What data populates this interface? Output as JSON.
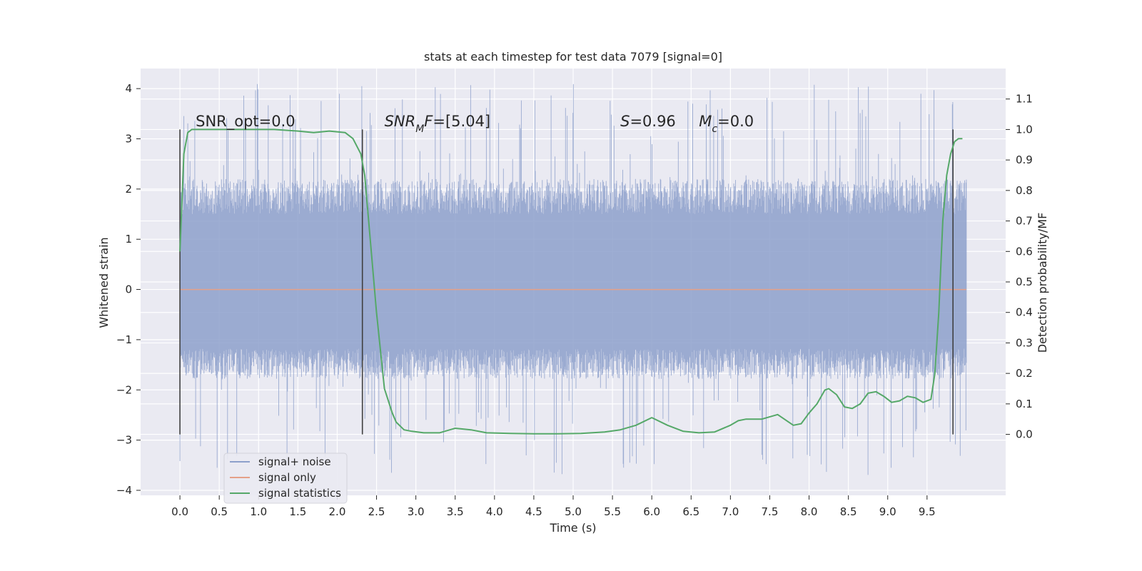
{
  "chart_data": {
    "type": "line",
    "title": "stats at each timestep for test data 7079 [signal=0]",
    "xlabel": "Time (s)",
    "ylabel": "Whitened strain",
    "y2label": "Detection probability/MF",
    "xlim": [
      -0.5,
      10.5
    ],
    "ylim": [
      -4.1,
      4.4
    ],
    "y2lim": [
      -0.2,
      1.2
    ],
    "x_ticks": [
      "0.0",
      "0.5",
      "1.0",
      "1.5",
      "2.0",
      "2.5",
      "3.0",
      "3.5",
      "4.0",
      "4.5",
      "5.0",
      "5.5",
      "6.0",
      "6.5",
      "7.0",
      "7.5",
      "8.0",
      "8.5",
      "9.0",
      "9.5"
    ],
    "y_ticks": [
      "−4",
      "−3",
      "−2",
      "−1",
      "0",
      "1",
      "2",
      "3",
      "4"
    ],
    "y2_ticks": [
      "0.0",
      "0.1",
      "0.2",
      "0.3",
      "0.4",
      "0.5",
      "0.6",
      "0.7",
      "0.8",
      "0.9",
      "1.0",
      "1.1"
    ],
    "grid": true,
    "legend_position": "lower-left",
    "colors": {
      "background": "#eaeaf2",
      "grid": "#ffffff",
      "noise": "#8da0cb",
      "signal": "#e5a088",
      "stats": "#55a868",
      "vline": "#404040"
    },
    "series": [
      {
        "name": "signal+ noise",
        "x_range": [
          0.0,
          10.0
        ],
        "envelope_typical": [
          -1.6,
          2.0
        ],
        "envelope_extreme": [
          -3.7,
          4.1
        ]
      },
      {
        "name": "signal only",
        "x": [
          0.0,
          10.0
        ],
        "y": [
          0.0,
          0.0
        ]
      },
      {
        "name": "signal statistics",
        "axis": "right",
        "x": [
          0.0,
          0.05,
          0.1,
          0.15,
          0.25,
          0.4,
          0.6,
          0.9,
          1.2,
          1.5,
          1.7,
          1.9,
          2.1,
          2.2,
          2.3,
          2.35,
          2.4,
          2.5,
          2.6,
          2.7,
          2.75,
          2.85,
          2.95,
          3.1,
          3.3,
          3.5,
          3.7,
          3.9,
          4.2,
          4.5,
          4.8,
          5.1,
          5.4,
          5.6,
          5.8,
          6.0,
          6.2,
          6.4,
          6.6,
          6.8,
          7.0,
          7.1,
          7.2,
          7.4,
          7.6,
          7.8,
          7.9,
          8.0,
          8.1,
          8.2,
          8.25,
          8.35,
          8.45,
          8.55,
          8.65,
          8.75,
          8.85,
          8.95,
          9.05,
          9.15,
          9.25,
          9.35,
          9.45,
          9.55,
          9.6,
          9.65,
          9.7,
          9.75,
          9.8,
          9.85,
          9.9,
          9.95
        ],
        "y": [
          0.6,
          0.92,
          0.99,
          1.0,
          1.0,
          1.0,
          1.0,
          1.0,
          1.0,
          0.995,
          0.99,
          0.995,
          0.99,
          0.97,
          0.92,
          0.85,
          0.7,
          0.4,
          0.15,
          0.07,
          0.04,
          0.015,
          0.01,
          0.005,
          0.005,
          0.02,
          0.015,
          0.005,
          0.003,
          0.002,
          0.002,
          0.003,
          0.008,
          0.015,
          0.03,
          0.055,
          0.03,
          0.01,
          0.005,
          0.008,
          0.03,
          0.045,
          0.05,
          0.05,
          0.065,
          0.03,
          0.035,
          0.07,
          0.1,
          0.145,
          0.15,
          0.13,
          0.09,
          0.085,
          0.1,
          0.135,
          0.14,
          0.125,
          0.105,
          0.11,
          0.125,
          0.12,
          0.105,
          0.115,
          0.2,
          0.4,
          0.7,
          0.85,
          0.92,
          0.96,
          0.97,
          0.97
        ]
      }
    ],
    "vlines": [
      0.0,
      2.32,
      9.83
    ],
    "annotations": [
      {
        "text": "SNR_opt=0.0",
        "x": 0.2,
        "y2": 1.01
      },
      {
        "text": "SNR_MF=[5.04]",
        "x": 2.6,
        "y2": 1.01
      },
      {
        "text": "S=0.96",
        "x": 5.6,
        "y2": 1.01
      },
      {
        "text": "M_c=0.0",
        "x": 6.6,
        "y2": 1.01
      }
    ]
  }
}
